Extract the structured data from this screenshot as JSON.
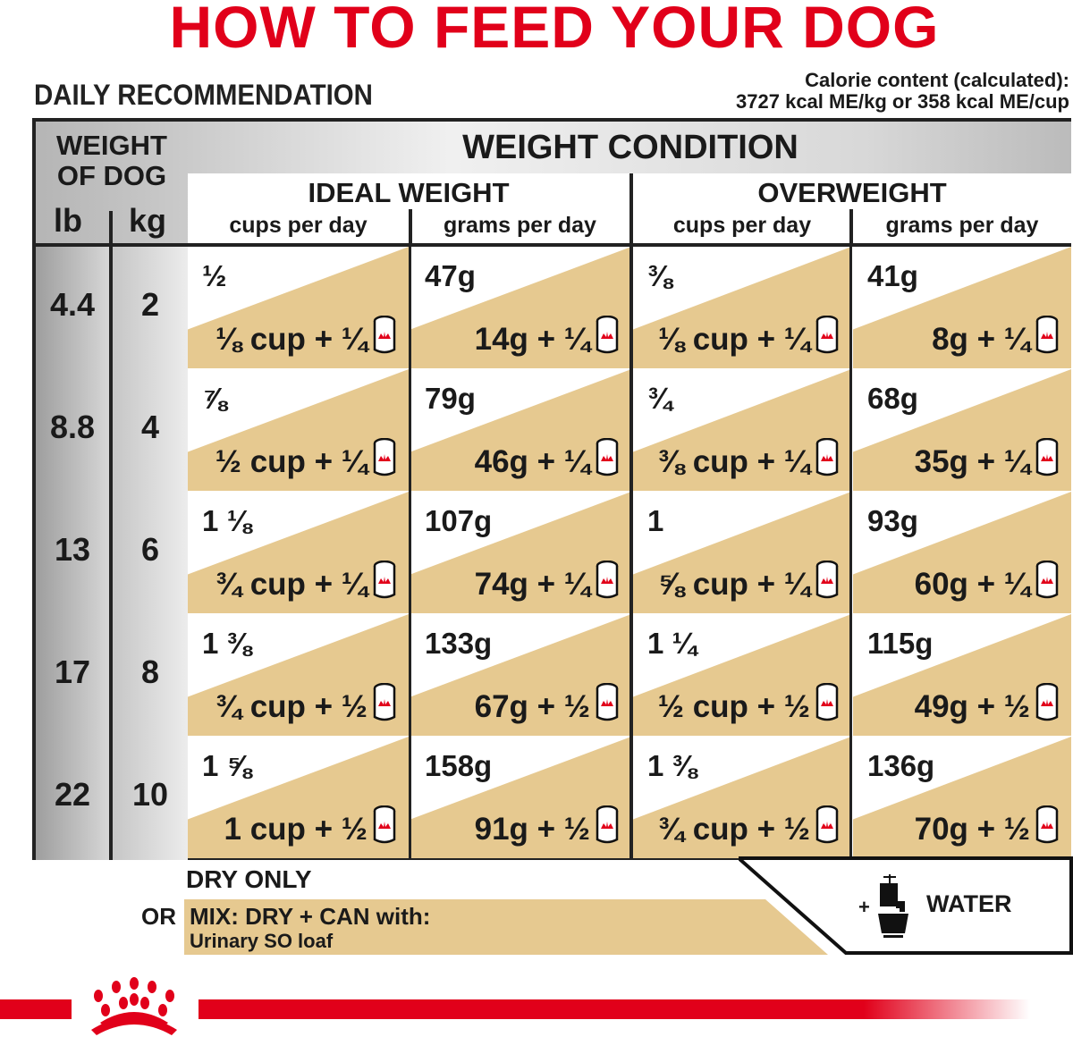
{
  "title": "HOW TO FEED YOUR DOG",
  "daily_recommendation": "DAILY RECOMMENDATION",
  "calorie_line1": "Calorie content (calculated):",
  "calorie_line2": "3727 kcal ME/kg or 358 kcal ME/cup",
  "header": {
    "weight_of_dog_1": "WEIGHT",
    "weight_of_dog_2": "OF DOG",
    "lb": "lb",
    "kg": "kg",
    "weight_condition": "WEIGHT CONDITION",
    "ideal": "IDEAL WEIGHT",
    "overweight": "OVERWEIGHT",
    "cups": "cups per day",
    "grams": "grams per day"
  },
  "rows": [
    {
      "lb": "4.4",
      "kg": "2",
      "cells": [
        [
          "½",
          "⅛ cup + ¼"
        ],
        [
          "47g",
          "14g + ¼"
        ],
        [
          "⅜",
          "⅛ cup + ¼"
        ],
        [
          "41g",
          "8g + ¼"
        ]
      ]
    },
    {
      "lb": "8.8",
      "kg": "4",
      "cells": [
        [
          "⅞",
          "½ cup + ¼"
        ],
        [
          "79g",
          "46g + ¼"
        ],
        [
          "¾",
          "⅜ cup + ¼"
        ],
        [
          "68g",
          "35g + ¼"
        ]
      ]
    },
    {
      "lb": "13",
      "kg": "6",
      "cells": [
        [
          "1 ⅛",
          "¾ cup + ¼"
        ],
        [
          "107g",
          "74g + ¼"
        ],
        [
          "1",
          "⅝ cup + ¼"
        ],
        [
          "93g",
          "60g + ¼"
        ]
      ]
    },
    {
      "lb": "17",
      "kg": "8",
      "cells": [
        [
          "1 ⅜",
          "¾ cup + ½"
        ],
        [
          "133g",
          "67g + ½"
        ],
        [
          "1 ¼",
          "½ cup + ½"
        ],
        [
          "115g",
          "49g + ½"
        ]
      ]
    },
    {
      "lb": "22",
      "kg": "10",
      "cells": [
        [
          "1 ⅝",
          "1 cup + ½"
        ],
        [
          "158g",
          "91g + ½"
        ],
        [
          "1 ⅜",
          "¾ cup + ½"
        ],
        [
          "136g",
          "70g + ½"
        ]
      ]
    }
  ],
  "footer": {
    "dry_only": "DRY ONLY",
    "or": "OR",
    "mix": "MIX: DRY + CAN with:",
    "product": "Urinary SO loaf",
    "plus": "+",
    "water": "WATER"
  },
  "icons": {
    "can": "wet-food-can-icon",
    "water": "water-tap-bowl-icon",
    "logo": "royal-canin-crown-logo"
  },
  "colors": {
    "red": "#e1001a",
    "tan": "#e6c990"
  }
}
